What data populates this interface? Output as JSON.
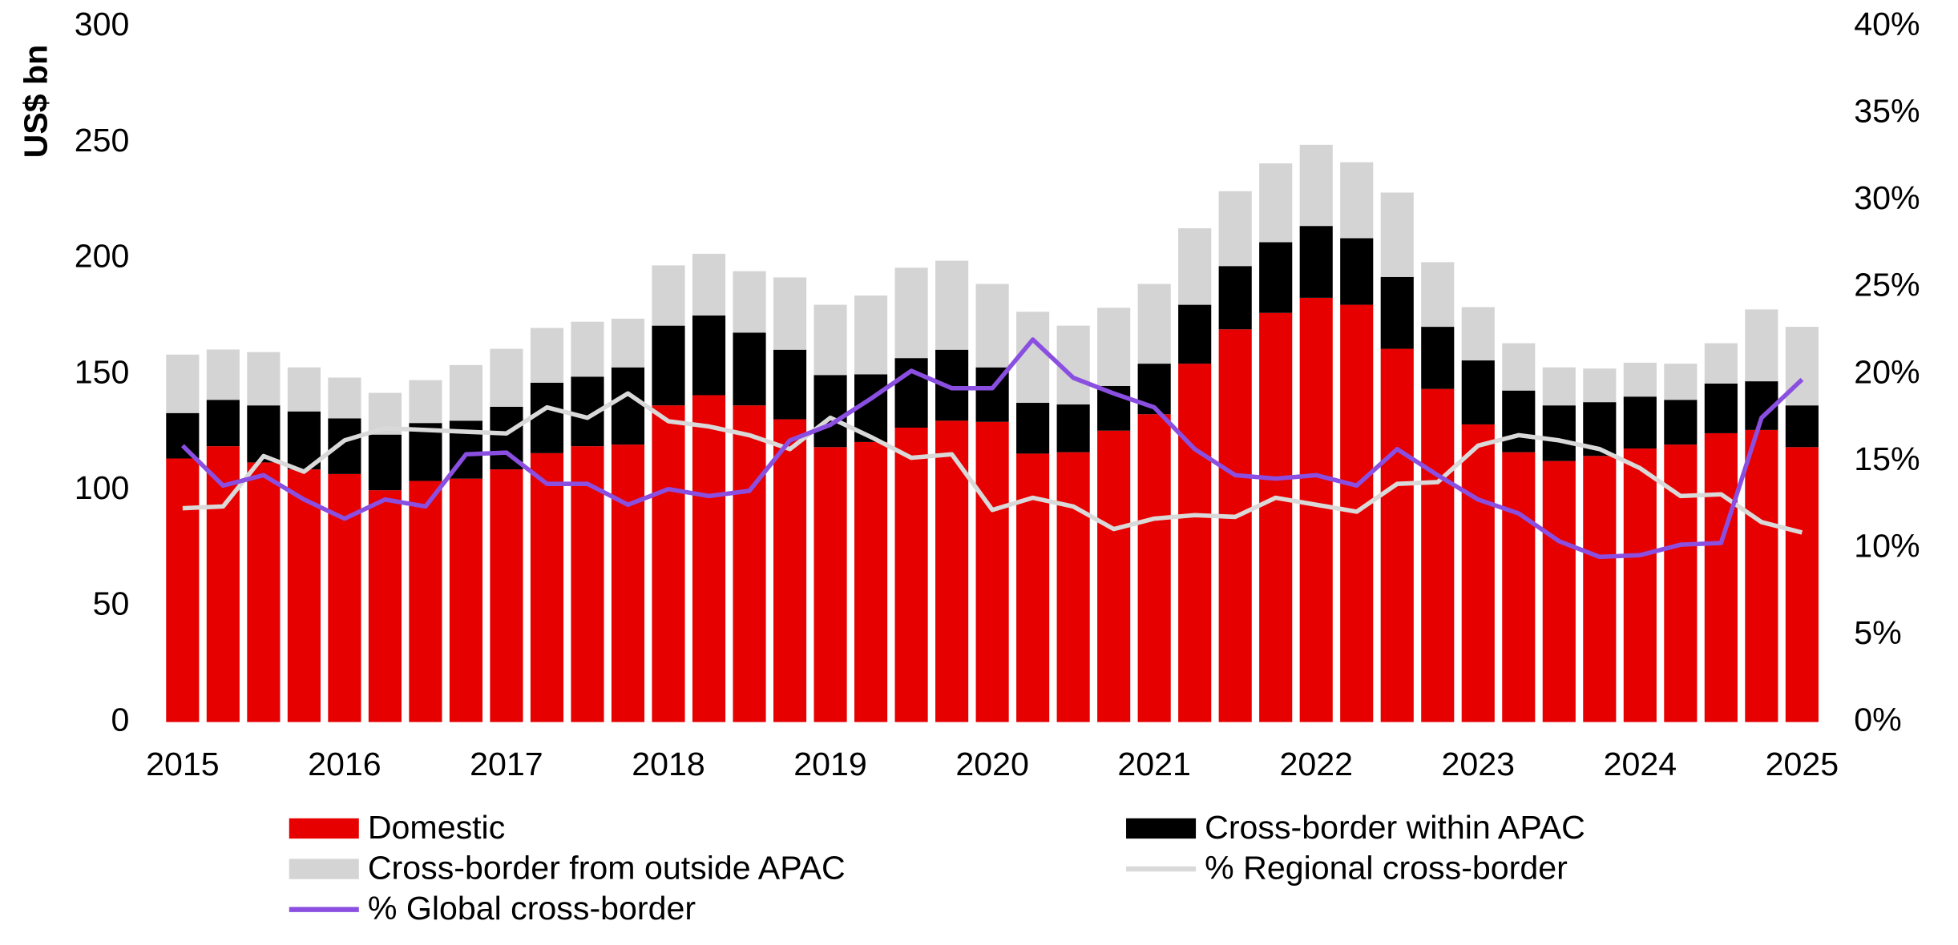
{
  "chart_data": {
    "type": "bar",
    "stacked": true,
    "y_label": "US$ bn",
    "categories": [
      "2015",
      null,
      null,
      null,
      "2016",
      null,
      null,
      null,
      "2017",
      null,
      null,
      null,
      "2018",
      null,
      null,
      null,
      "2019",
      null,
      null,
      null,
      "2020",
      null,
      null,
      null,
      "2021",
      null,
      null,
      null,
      "2022",
      null,
      null,
      null,
      "2023",
      null,
      null,
      null,
      "2024",
      null,
      null,
      null,
      "2025"
    ],
    "ylim": [
      0,
      300
    ],
    "yticks": [
      0,
      50,
      100,
      150,
      200,
      250,
      300
    ],
    "y2lim": [
      0,
      40
    ],
    "y2ticks": [
      {
        "value": 0,
        "label": "0%"
      },
      {
        "value": 5,
        "label": "5%"
      },
      {
        "value": 10,
        "label": "10%"
      },
      {
        "value": 15,
        "label": "15%"
      },
      {
        "value": 20,
        "label": "20%"
      },
      {
        "value": 25,
        "label": "25%"
      },
      {
        "value": 30,
        "label": "30%"
      },
      {
        "value": 35,
        "label": "35%"
      },
      {
        "value": 40,
        "label": "40%"
      }
    ],
    "series": [
      {
        "name": "Domestic",
        "color": "#e60000",
        "type": "bar",
        "values": [
          113.7,
          119,
          112,
          109,
          107,
          100,
          104,
          105,
          109,
          116,
          119,
          119.7,
          136.6,
          141,
          136.6,
          130.6,
          118.6,
          120.8,
          127,
          130,
          129.5,
          115.8,
          116.4,
          125.7,
          132.8,
          154.6,
          169.4,
          176.5,
          183,
          180,
          161,
          143.7,
          128.4,
          116.4,
          112.6,
          114.8,
          118,
          119.7,
          124.6,
          126,
          118.6
        ]
      },
      {
        "name": "Cross-border within APAC",
        "color": "#000000",
        "type": "bar",
        "values": [
          19.6,
          20,
          24.6,
          25,
          24,
          24,
          25,
          25,
          27,
          30.4,
          30,
          33.3,
          34.4,
          34.4,
          31.4,
          30,
          31.1,
          29.2,
          30,
          30.6,
          23.5,
          21.9,
          20.6,
          19.3,
          21.8,
          25.4,
          27.3,
          30.5,
          31,
          28.7,
          31,
          26.8,
          27.6,
          26.6,
          24,
          23.2,
          22.4,
          19.3,
          21.4,
          21,
          18
        ]
      },
      {
        "name": "Cross-border from outside APAC",
        "color": "#d4d4d4",
        "type": "bar",
        "values": [
          25.2,
          21.7,
          23,
          19,
          17.6,
          18,
          18.5,
          24,
          25,
          23.6,
          23.7,
          21,
          26,
          26.6,
          26.5,
          31.2,
          30.3,
          34,
          39,
          38.4,
          36,
          39.3,
          34,
          33.7,
          34.4,
          33,
          32.3,
          34,
          35,
          32.8,
          36.4,
          27.9,
          23,
          20.4,
          16.4,
          14.5,
          14.6,
          15.6,
          17.4,
          31,
          33.9
        ]
      },
      {
        "name": "% Regional cross-border",
        "color": "#d9d9d9",
        "type": "line",
        "axis": "y2",
        "values": [
          12.3,
          12.4,
          15.3,
          14.4,
          16.2,
          16.9,
          16.8,
          16.7,
          16.6,
          18.1,
          17.5,
          18.9,
          17.3,
          17,
          16.5,
          15.7,
          17.5,
          16.4,
          15.2,
          15.4,
          12.2,
          12.9,
          12.4,
          11.1,
          11.7,
          11.9,
          11.8,
          12.9,
          12.5,
          12.1,
          13.7,
          13.8,
          15.9,
          16.5,
          16.2,
          15.7,
          14.6,
          13,
          13.1,
          11.5,
          10.9
        ]
      },
      {
        "name": "% Global cross-border",
        "color": "#8a4fe0",
        "type": "line",
        "axis": "y2",
        "values": [
          15.9,
          13.6,
          14.2,
          12.8,
          11.7,
          12.8,
          12.4,
          15.4,
          15.5,
          13.7,
          13.7,
          12.5,
          13.4,
          13,
          13.3,
          16.2,
          17.1,
          18.6,
          20.2,
          19.2,
          19.2,
          22,
          19.8,
          18.9,
          18.1,
          15.7,
          14.2,
          14,
          14.2,
          13.6,
          15.7,
          14.2,
          12.8,
          12,
          10.4,
          9.5,
          9.6,
          10.2,
          10.3,
          17.5,
          19.7
        ]
      }
    ]
  }
}
